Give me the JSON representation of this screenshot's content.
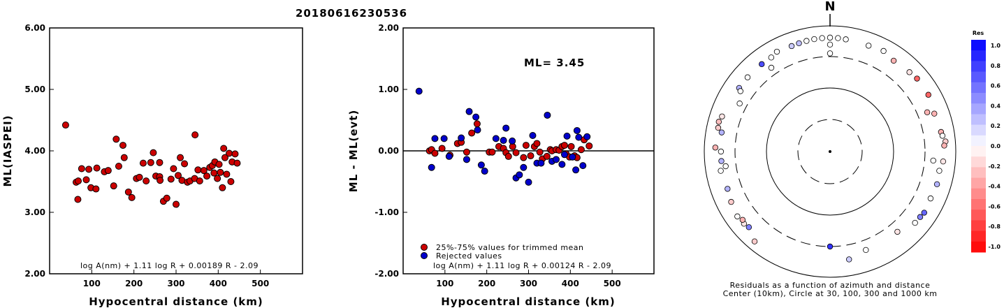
{
  "title": "20180616230536",
  "chart_data": [
    {
      "type": "scatter",
      "xlabel": "Hypocentral distance (km)",
      "ylabel": "ML(IASPEI)",
      "xlim": [
        0,
        600
      ],
      "ylim": [
        2.0,
        6.0
      ],
      "xticks": [
        "100",
        "200",
        "300",
        "400",
        "500"
      ],
      "yticks": [
        "2.00",
        "3.00",
        "4.00",
        "5.00",
        "6.00"
      ],
      "formula": "log A(nm) + 1.11 log R + 0.00189 R - 2.09",
      "points": [
        [
          38,
          4.42
        ],
        [
          63,
          3.49
        ],
        [
          68,
          3.51
        ],
        [
          67,
          3.21
        ],
        [
          76,
          3.71
        ],
        [
          87,
          3.53
        ],
        [
          93,
          3.7
        ],
        [
          98,
          3.4
        ],
        [
          112,
          3.72
        ],
        [
          110,
          3.38
        ],
        [
          130,
          3.66
        ],
        [
          139,
          3.68
        ],
        [
          152,
          3.43
        ],
        [
          158,
          4.19
        ],
        [
          164,
          3.75
        ],
        [
          174,
          4.09
        ],
        [
          177,
          3.89
        ],
        [
          187,
          3.33
        ],
        [
          195,
          3.24
        ],
        [
          206,
          3.55
        ],
        [
          213,
          3.57
        ],
        [
          222,
          3.8
        ],
        [
          229,
          3.51
        ],
        [
          240,
          3.81
        ],
        [
          246,
          3.97
        ],
        [
          252,
          3.59
        ],
        [
          261,
          3.58
        ],
        [
          261,
          3.81
        ],
        [
          262,
          3.52
        ],
        [
          270,
          3.18
        ],
        [
          278,
          3.23
        ],
        [
          288,
          3.54
        ],
        [
          294,
          3.71
        ],
        [
          300,
          3.13
        ],
        [
          305,
          3.6
        ],
        [
          310,
          3.89
        ],
        [
          314,
          3.52
        ],
        [
          320,
          3.79
        ],
        [
          327,
          3.49
        ],
        [
          333,
          3.51
        ],
        [
          344,
          3.55
        ],
        [
          345,
          4.26
        ],
        [
          352,
          3.69
        ],
        [
          356,
          3.51
        ],
        [
          366,
          3.68
        ],
        [
          373,
          3.59
        ],
        [
          380,
          3.73
        ],
        [
          386,
          3.76
        ],
        [
          390,
          3.64
        ],
        [
          392,
          3.82
        ],
        [
          398,
          3.55
        ],
        [
          402,
          3.78
        ],
        [
          405,
          3.65
        ],
        [
          410,
          3.4
        ],
        [
          413,
          4.04
        ],
        [
          416,
          3.89
        ],
        [
          420,
          3.62
        ],
        [
          426,
          3.96
        ],
        [
          430,
          3.5
        ],
        [
          433,
          3.82
        ],
        [
          440,
          3.95
        ],
        [
          445,
          3.8
        ]
      ]
    },
    {
      "type": "scatter",
      "xlabel": "Hypocentral distance (km)",
      "ylabel": "ML - ML(evt)",
      "xlim": [
        0,
        600
      ],
      "ylim": [
        -2.0,
        2.0
      ],
      "xticks": [
        "100",
        "200",
        "300",
        "400",
        "500"
      ],
      "yticks": [
        "-2.00",
        "-1.00",
        "0.00",
        "1.00",
        "2.00"
      ],
      "annotation": "ML= 3.45",
      "formula": "log A(nm) + 1.11 log R + 0.00124 R - 2.09",
      "series": [
        {
          "name": "25%-75% values for trimmed mean",
          "color": "#cc0000",
          "points": [
            [
              63,
              0.0
            ],
            [
              68,
              0.02
            ],
            [
              76,
              -0.04
            ],
            [
              93,
              0.04
            ],
            [
              112,
              -0.07
            ],
            [
              130,
              0.12
            ],
            [
              139,
              0.14
            ],
            [
              152,
              -0.02
            ],
            [
              164,
              0.29
            ],
            [
              177,
              0.44
            ],
            [
              206,
              -0.02
            ],
            [
              213,
              -0.02
            ],
            [
              229,
              0.07
            ],
            [
              240,
              0.04
            ],
            [
              246,
              -0.03
            ],
            [
              252,
              -0.09
            ],
            [
              262,
              0.07
            ],
            [
              270,
              -0.03
            ],
            [
              288,
              -0.11
            ],
            [
              294,
              0.09
            ],
            [
              305,
              -0.08
            ],
            [
              314,
              0.07
            ],
            [
              320,
              0.12
            ],
            [
              327,
              -0.02
            ],
            [
              333,
              -0.13
            ],
            [
              344,
              -0.09
            ],
            [
              352,
              0.02
            ],
            [
              356,
              0.0
            ],
            [
              366,
              0.02
            ],
            [
              373,
              0.01
            ],
            [
              380,
              0.07
            ],
            [
              386,
              0.09
            ],
            [
              390,
              -0.05
            ],
            [
              398,
              -0.1
            ],
            [
              402,
              0.07
            ],
            [
              410,
              -0.08
            ],
            [
              416,
              -0.11
            ],
            [
              426,
              0.02
            ],
            [
              433,
              0.18
            ],
            [
              445,
              0.08
            ]
          ]
        },
        {
          "name": "Rejected values",
          "color": "#0000cc",
          "points": [
            [
              38,
              0.97
            ],
            [
              68,
              -0.27
            ],
            [
              76,
              0.2
            ],
            [
              98,
              0.2
            ],
            [
              110,
              -0.09
            ],
            [
              139,
              0.21
            ],
            [
              152,
              -0.14
            ],
            [
              158,
              0.64
            ],
            [
              174,
              0.55
            ],
            [
              178,
              0.34
            ],
            [
              187,
              -0.23
            ],
            [
              195,
              -0.33
            ],
            [
              222,
              0.2
            ],
            [
              240,
              0.17
            ],
            [
              246,
              0.37
            ],
            [
              261,
              0.16
            ],
            [
              270,
              -0.44
            ],
            [
              278,
              -0.39
            ],
            [
              288,
              -0.27
            ],
            [
              300,
              -0.51
            ],
            [
              310,
              0.25
            ],
            [
              320,
              -0.2
            ],
            [
              330,
              -0.2
            ],
            [
              345,
              0.58
            ],
            [
              356,
              -0.17
            ],
            [
              366,
              -0.14
            ],
            [
              380,
              -0.22
            ],
            [
              386,
              -0.06
            ],
            [
              392,
              0.24
            ],
            [
              405,
              -0.1
            ],
            [
              413,
              -0.31
            ],
            [
              416,
              0.33
            ],
            [
              420,
              0.22
            ],
            [
              430,
              -0.24
            ],
            [
              440,
              0.23
            ]
          ]
        }
      ]
    },
    {
      "type": "scatter",
      "subtype": "polar",
      "north_label": "N",
      "caption_line1": "Residuals as a function of azimuth and distance",
      "caption_line2": "Center (10km), Circle at 30, 100, 300 and 1000 km",
      "colorbar": {
        "title": "Res",
        "ticks": [
          "1.0",
          "0.8",
          "0.6",
          "0.4",
          "0.2",
          "0.0",
          "-0.2",
          "-0.4",
          "-0.6",
          "-0.8",
          "-1.0"
        ],
        "max_color": "#0000ff",
        "mid_color": "#ffffff",
        "min_color": "#ff0000"
      },
      "points": [
        {
          "az": -20,
          "dist": 590,
          "res": 0.2
        },
        {
          "az": -16,
          "dist": 600,
          "res": 0.25
        },
        {
          "az": -12,
          "dist": 610,
          "res": 0.0
        },
        {
          "az": -8,
          "dist": 620,
          "res": 0.0
        },
        {
          "az": -4,
          "dist": 625,
          "res": 0.0
        },
        {
          "az": 0,
          "dist": 630,
          "res": 0.0
        },
        {
          "az": 4,
          "dist": 625,
          "res": 0.0
        },
        {
          "az": 8,
          "dist": 615,
          "res": 0.0
        },
        {
          "az": -38,
          "dist": 560,
          "res": 0.7
        },
        {
          "az": -32,
          "dist": 560,
          "res": 0.0
        },
        {
          "az": -28,
          "dist": 610,
          "res": 0.0
        },
        {
          "az": -48,
          "dist": 560,
          "res": 0.0
        },
        {
          "az": -55,
          "dist": 560,
          "res": 0.3
        },
        {
          "az": -56,
          "dist": 500,
          "res": 0.0
        },
        {
          "az": -75,
          "dist": 660,
          "res": -0.25
        },
        {
          "az": -72,
          "dist": 620,
          "res": -0.1
        },
        {
          "az": -78,
          "dist": 640,
          "res": -0.2
        },
        {
          "az": -88,
          "dist": 650,
          "res": -0.3
        },
        {
          "az": -90,
          "dist": 520,
          "res": 0.0
        },
        {
          "az": -95,
          "dist": 520,
          "res": 0.3
        },
        {
          "az": -100,
          "dist": 560,
          "res": 0.0
        },
        {
          "az": -80,
          "dist": 540,
          "res": 0.3
        },
        {
          "az": -98,
          "dist": 450,
          "res": 0.0
        },
        {
          "az": -117,
          "dist": 560,
          "res": -0.2
        },
        {
          "az": -125,
          "dist": 610,
          "res": 0.0
        },
        {
          "az": -130,
          "dist": 590,
          "res": -0.1
        },
        {
          "az": -128,
          "dist": 560,
          "res": -0.3
        },
        {
          "az": -133,
          "dist": 560,
          "res": 0.5
        },
        {
          "az": -140,
          "dist": 720,
          "res": -0.2
        },
        {
          "az": -110,
          "dist": 520,
          "res": 0.3
        },
        {
          "az": -62,
          "dist": 400,
          "res": 0.0
        },
        {
          "az": -35,
          "dist": 400,
          "res": 0.0
        },
        {
          "az": 20,
          "dist": 600,
          "res": 0.0
        },
        {
          "az": 28,
          "dist": 630,
          "res": 0.0
        },
        {
          "az": 35,
          "dist": 560,
          "res": -0.3
        },
        {
          "az": 45,
          "dist": 590,
          "res": -0.1
        },
        {
          "az": 50,
          "dist": 620,
          "res": -0.6
        },
        {
          "az": 60,
          "dist": 620,
          "res": -0.6
        },
        {
          "az": 70,
          "dist": 560,
          "res": -0.3
        },
        {
          "az": 80,
          "dist": 600,
          "res": -0.3
        },
        {
          "az": 82,
          "dist": 620,
          "res": 0.0
        },
        {
          "az": 85,
          "dist": 680,
          "res": -0.2
        },
        {
          "az": 87,
          "dist": 640,
          "res": -0.3
        },
        {
          "az": 95,
          "dist": 620,
          "res": -0.1
        },
        {
          "az": 100,
          "dist": 560,
          "res": 0.0
        },
        {
          "az": 107,
          "dist": 580,
          "res": 0.3
        },
        {
          "az": 115,
          "dist": 560,
          "res": 0.0
        },
        {
          "az": 123,
          "dist": 590,
          "res": 0.6
        },
        {
          "az": 126,
          "dist": 570,
          "res": 0.5
        },
        {
          "az": 130,
          "dist": 560,
          "res": 0.0
        },
        {
          "az": 68,
          "dist": 440,
          "res": -0.3
        },
        {
          "az": 0,
          "dist": 480,
          "res": 0.0
        },
        {
          "az": 160,
          "dist": 440,
          "res": 0.0
        },
        {
          "az": 170,
          "dist": 530,
          "res": 0.2
        },
        {
          "az": 140,
          "dist": 440,
          "res": -0.1
        },
        {
          "az": 95,
          "dist": 420,
          "res": 0.0
        },
        {
          "az": 0,
          "dist": 340,
          "res": 0.0
        },
        {
          "az": 180,
          "dist": 300,
          "res": 0.8
        }
      ]
    }
  ]
}
